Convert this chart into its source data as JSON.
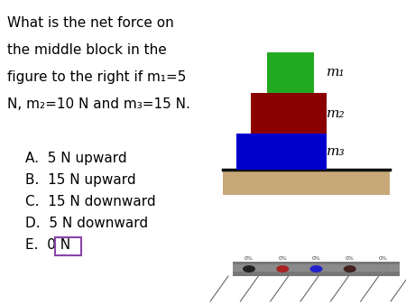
{
  "title_lines": [
    "What is the net force on",
    "the middle block in the",
    "figure to the right if m₁=5",
    "N, m₂=10 N and m₃=15 N."
  ],
  "choices": [
    "A.  5 N upward",
    "B.  15 N upward",
    "C.  15 N downward",
    "D.  5 N downward",
    "E.  0 N"
  ],
  "answer_index": 4,
  "bg_color": "#ffffff",
  "text_color": "#000000",
  "block_green": "#22aa22",
  "block_red": "#8b0000",
  "block_blue": "#0000cc",
  "ground_color": "#c8a878",
  "ground_line_color": "#111111",
  "label_m1": "m₁",
  "label_m2": "m₂",
  "label_m3": "m₃",
  "box_color": "#8844aa",
  "strip_color": "#888888",
  "strip_dot_colors": [
    "#222222",
    "#aa2222",
    "#2222cc",
    "#442222",
    "#888888"
  ]
}
